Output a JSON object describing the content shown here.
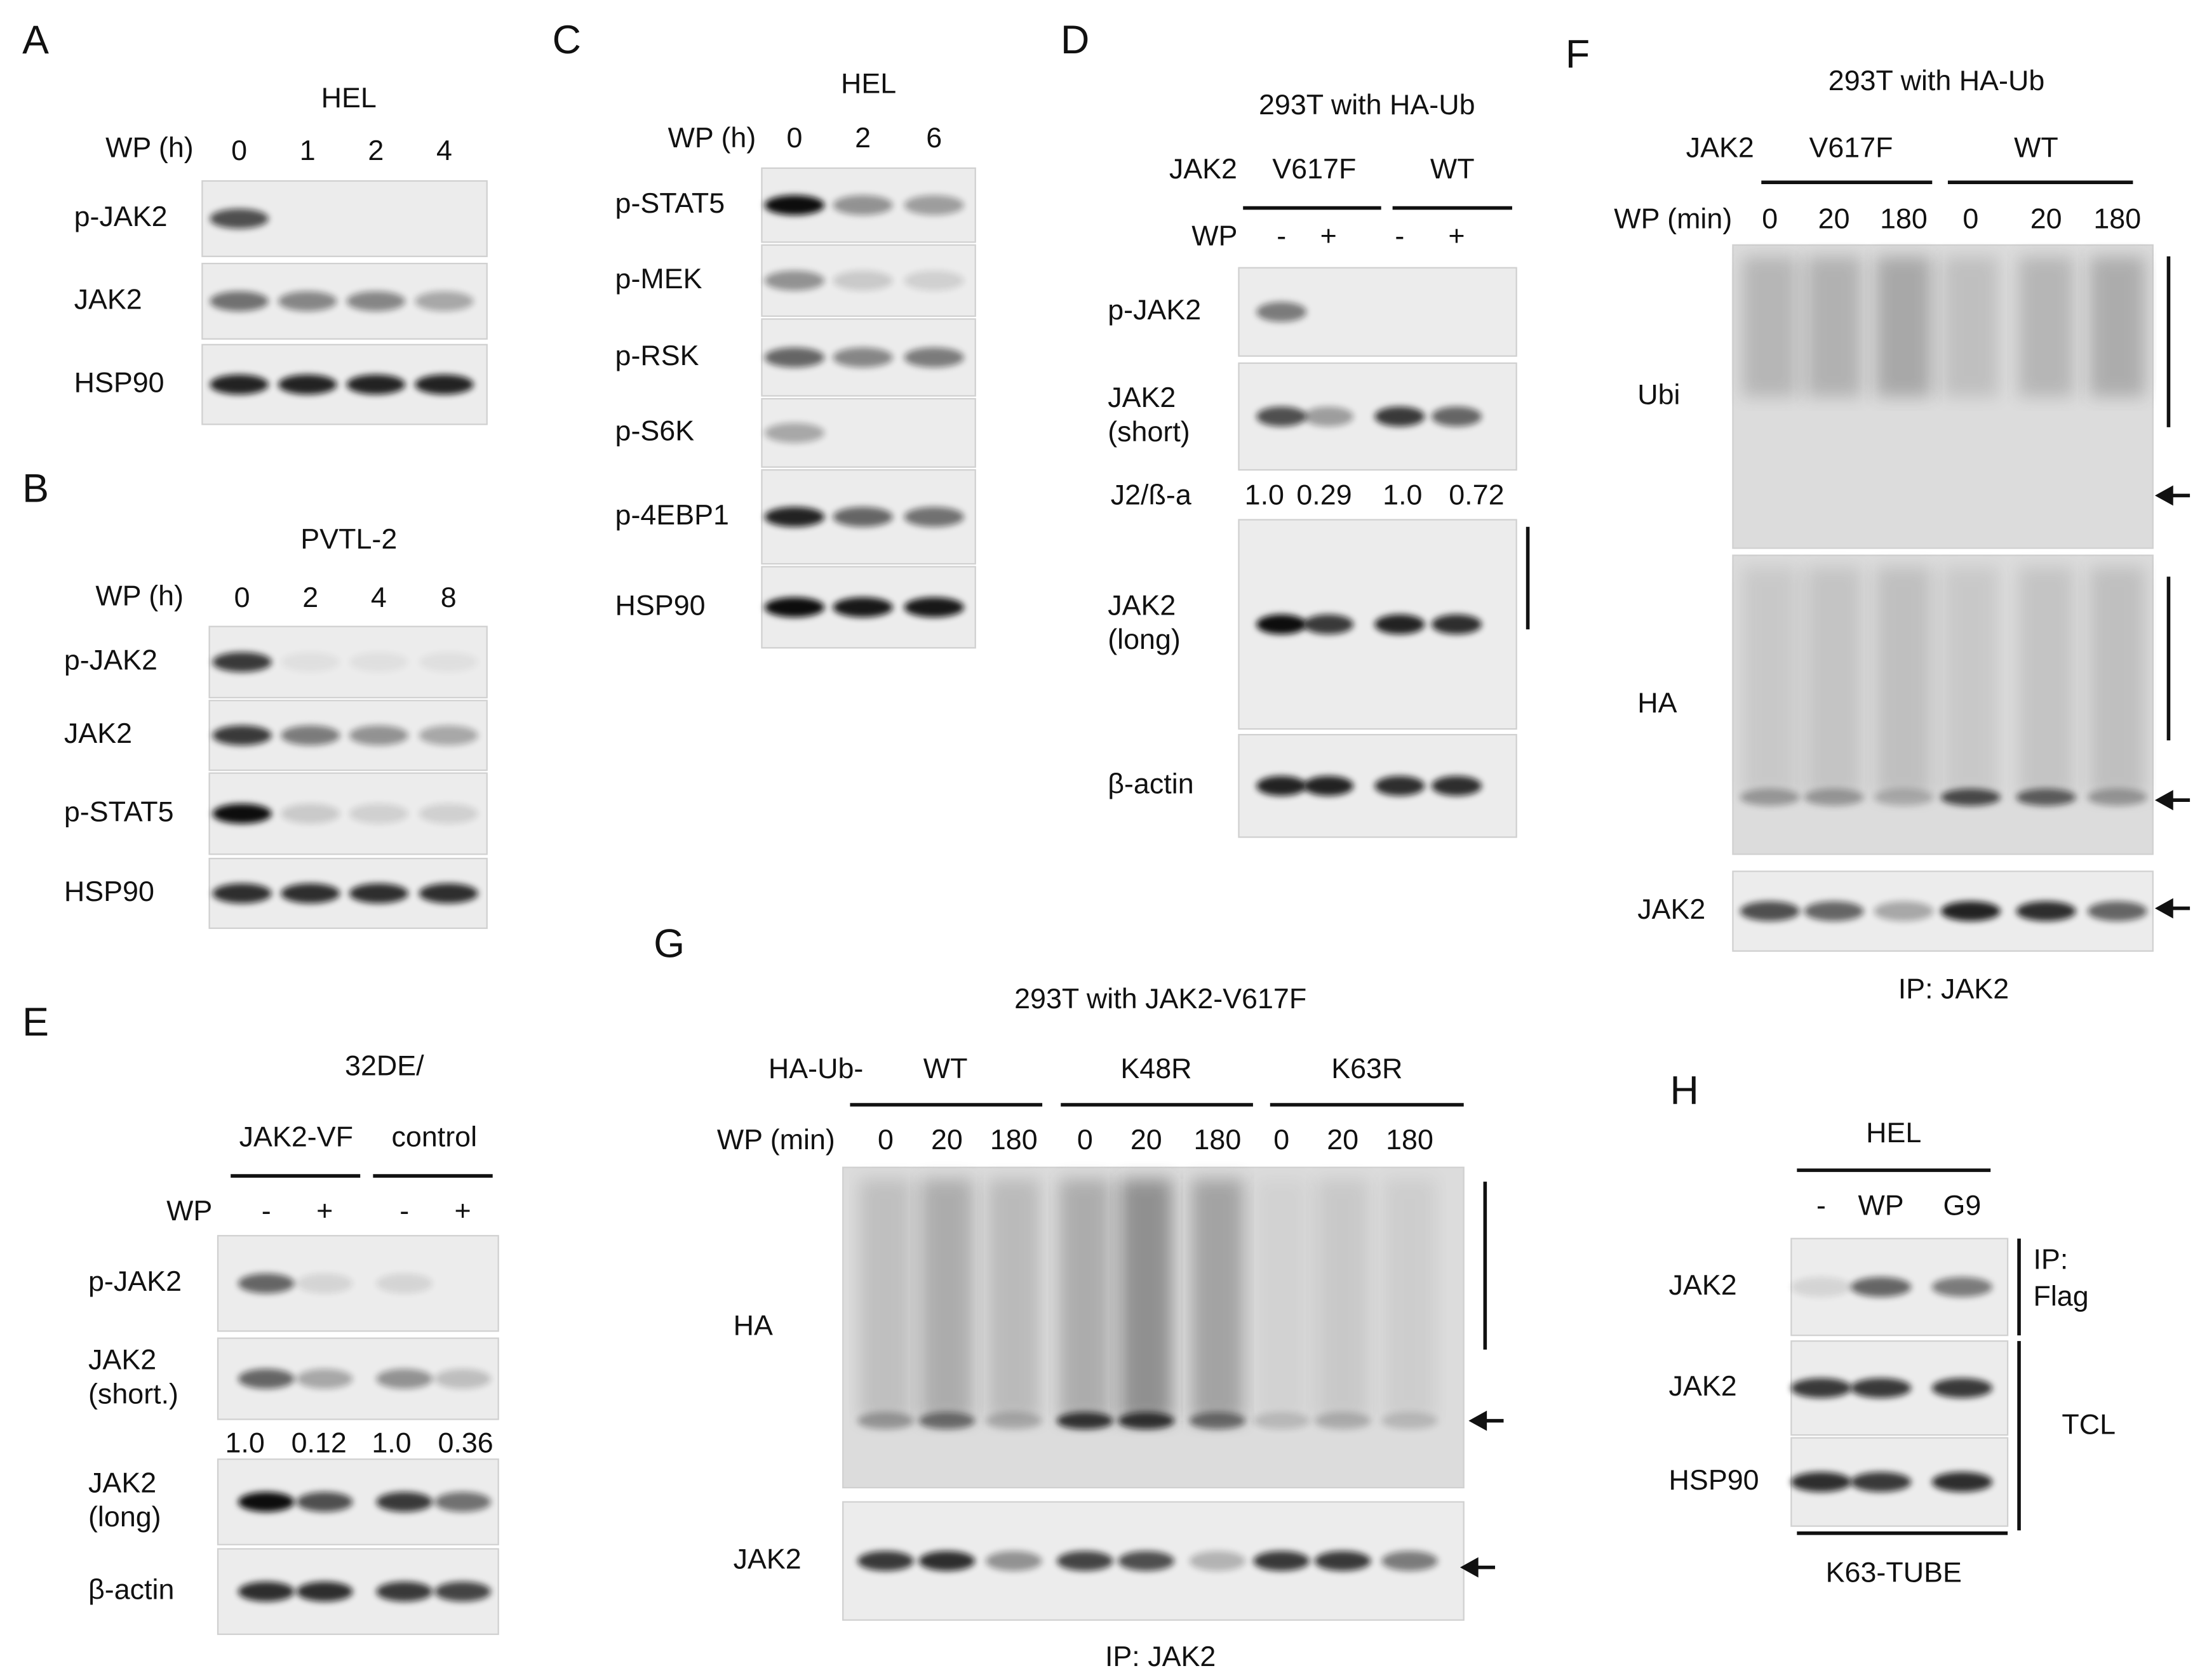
{
  "panels": [
    {
      "letter": "A",
      "title": "HEL",
      "condition": "WP (h)",
      "lanes": [
        "0",
        "1",
        "2",
        "4"
      ],
      "rows": [
        [
          "p-JAK2"
        ],
        [
          "JAK2"
        ],
        [
          "HSP90"
        ]
      ]
    },
    {
      "letter": "B",
      "title": "PVTL-2",
      "condition": "WP (h)",
      "lanes": [
        "0",
        "2",
        "4",
        "8"
      ],
      "rows": [
        [
          "p-JAK2"
        ],
        [
          "JAK2"
        ],
        [
          "p-STAT5"
        ],
        [
          "HSP90"
        ]
      ]
    },
    {
      "letter": "C",
      "title": "HEL",
      "condition": "WP (h)",
      "lanes": [
        "0",
        "2",
        "6"
      ],
      "rows": [
        [
          "p-STAT5"
        ],
        [
          "p-MEK"
        ],
        [
          "p-RSK"
        ],
        [
          "p-S6K"
        ],
        [
          "p-4EBP1"
        ],
        [
          "HSP90"
        ]
      ]
    },
    {
      "letter": "D",
      "title": "293T with HA-Ub",
      "group_label": "JAK2",
      "groups": [
        "V617F",
        "WT"
      ],
      "condition": "WP",
      "lanes": [
        "-",
        "+",
        "-",
        "+"
      ],
      "rows": [
        [
          "p-JAK2"
        ],
        [
          "JAK2",
          "(short)"
        ],
        [
          "JAK2",
          "(long)"
        ],
        [
          "β-actin"
        ]
      ],
      "ratio_label": "J2/ß-a",
      "ratios": [
        "1.0",
        "0.29",
        "1.0",
        "0.72"
      ]
    },
    {
      "letter": "E",
      "title": "32DE/",
      "groups": [
        "JAK2-VF",
        "control"
      ],
      "condition": "WP",
      "lanes": [
        "-",
        "+",
        "-",
        "+"
      ],
      "rows": [
        [
          "p-JAK2"
        ],
        [
          "JAK2",
          "(short.)"
        ],
        [
          "JAK2",
          "(long)"
        ],
        [
          "β-actin"
        ]
      ],
      "ratios": [
        "1.0",
        "0.12",
        "1.0",
        "0.36"
      ]
    },
    {
      "letter": "F",
      "title": "293T with HA-Ub",
      "group_label": "JAK2",
      "groups": [
        "V617F",
        "WT"
      ],
      "condition": "WP (min)",
      "lanes": [
        "0",
        "20",
        "180",
        "0",
        "20",
        "180"
      ],
      "rows": [
        [
          "Ubi"
        ],
        [
          "HA"
        ],
        [
          "JAK2"
        ]
      ],
      "footer": "IP: JAK2"
    },
    {
      "letter": "G",
      "title": "293T with JAK2-V617F",
      "group_label": "HA-Ub-",
      "groups": [
        "WT",
        "K48R",
        "K63R"
      ],
      "condition": "WP (min)",
      "lanes": [
        "0",
        "20",
        "180",
        "0",
        "20",
        "180",
        "0",
        "20",
        "180"
      ],
      "rows": [
        [
          "HA"
        ],
        [
          "JAK2"
        ]
      ],
      "footer": "IP: JAK2"
    },
    {
      "letter": "H",
      "title": "HEL",
      "lanes": [
        "-",
        "WP",
        "G9"
      ],
      "rows": [
        [
          "JAK2"
        ],
        [
          "JAK2"
        ],
        [
          "HSP90"
        ]
      ],
      "side_labels": [
        [
          "IP:",
          "Flag"
        ],
        [
          "TCL"
        ]
      ],
      "footer": "K63-TUBE"
    }
  ]
}
